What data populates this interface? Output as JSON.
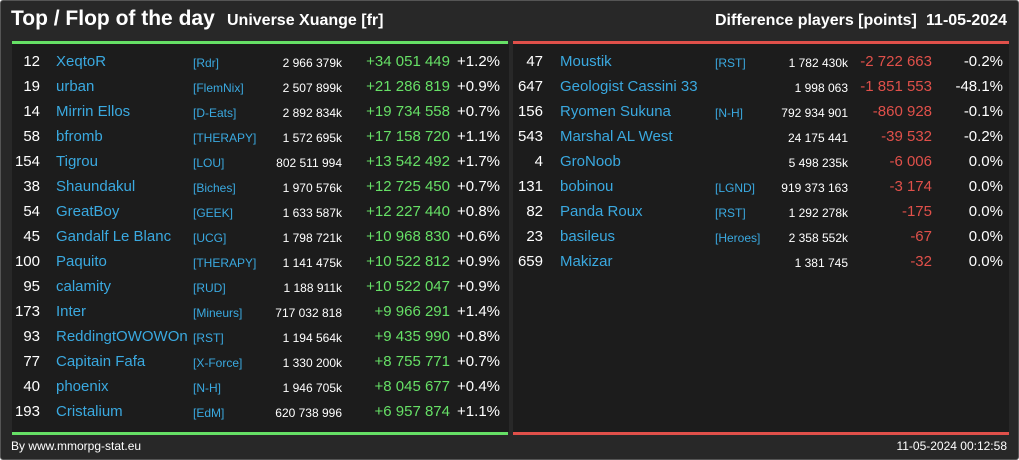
{
  "header": {
    "title": "Top / Flop of the day",
    "universe": "Universe Xuange [fr]",
    "difference_label": "Difference players [points]",
    "date": "11-05-2024"
  },
  "colors": {
    "background": "#282828",
    "panel": "#1c1c1c",
    "link": "#3aa9e0",
    "gain": "#66e066",
    "loss": "#e0504a"
  },
  "top": [
    {
      "rank": "12",
      "name": "XeqtoR",
      "alliance": "[Rdr]",
      "points": "2 966 379k",
      "diff": "+34 051 449",
      "pct": "+1.2%"
    },
    {
      "rank": "19",
      "name": "urban",
      "alliance": "[FlemNix]",
      "points": "2 507 899k",
      "diff": "+21 286 819",
      "pct": "+0.9%"
    },
    {
      "rank": "14",
      "name": "Mirrin Ellos",
      "alliance": "[D-Eats]",
      "points": "2 892 834k",
      "diff": "+19 734 558",
      "pct": "+0.7%"
    },
    {
      "rank": "58",
      "name": "bfromb",
      "alliance": "[THERAPY]",
      "points": "1 572 695k",
      "diff": "+17 158 720",
      "pct": "+1.1%"
    },
    {
      "rank": "154",
      "name": "Tigrou",
      "alliance": "[LOU]",
      "points": "802 511 994",
      "diff": "+13 542 492",
      "pct": "+1.7%"
    },
    {
      "rank": "38",
      "name": "Shaundakul",
      "alliance": "[Biches]",
      "points": "1 970 576k",
      "diff": "+12 725 450",
      "pct": "+0.7%"
    },
    {
      "rank": "54",
      "name": "GreatBoy",
      "alliance": "[GEEK]",
      "points": "1 633 587k",
      "diff": "+12 227 440",
      "pct": "+0.8%"
    },
    {
      "rank": "45",
      "name": "Gandalf Le Blanc",
      "alliance": "[UCG]",
      "points": "1 798 721k",
      "diff": "+10 968 830",
      "pct": "+0.6%"
    },
    {
      "rank": "100",
      "name": "Paquito",
      "alliance": "[THERAPY]",
      "points": "1 141 475k",
      "diff": "+10 522 812",
      "pct": "+0.9%"
    },
    {
      "rank": "95",
      "name": "calamity",
      "alliance": "[RUD]",
      "points": "1 188 911k",
      "diff": "+10 522 047",
      "pct": "+0.9%"
    },
    {
      "rank": "173",
      "name": "Inter",
      "alliance": "[Mineurs]",
      "points": "717 032 818",
      "diff": "+9 966 291",
      "pct": "+1.4%"
    },
    {
      "rank": "93",
      "name": "ReddingtOWOWOn",
      "alliance": "[RST]",
      "points": "1 194 564k",
      "diff": "+9 435 990",
      "pct": "+0.8%"
    },
    {
      "rank": "77",
      "name": "Capitain Fafa",
      "alliance": "[X-Force]",
      "points": "1 330 200k",
      "diff": "+8 755 771",
      "pct": "+0.7%"
    },
    {
      "rank": "40",
      "name": "phoenix",
      "alliance": "[N-H]",
      "points": "1 946 705k",
      "diff": "+8 045 677",
      "pct": "+0.4%"
    },
    {
      "rank": "193",
      "name": "Cristalium",
      "alliance": "[EdM]",
      "points": "620 738 996",
      "diff": "+6 957 874",
      "pct": "+1.1%"
    }
  ],
  "flop": [
    {
      "rank": "47",
      "name": "Moustik",
      "alliance": "[RST]",
      "points": "1 782 430k",
      "diff": "-2 722 663",
      "pct": "-0.2%"
    },
    {
      "rank": "647",
      "name": "Geologist Cassini 33",
      "alliance": "",
      "points": "1 998 063",
      "diff": "-1 851 553",
      "pct": "-48.1%"
    },
    {
      "rank": "156",
      "name": "Ryomen Sukuna",
      "alliance": "[N-H]",
      "points": "792 934 901",
      "diff": "-860 928",
      "pct": "-0.1%"
    },
    {
      "rank": "543",
      "name": "Marshal AL West",
      "alliance": "",
      "points": "24 175 441",
      "diff": "-39 532",
      "pct": "-0.2%"
    },
    {
      "rank": "4",
      "name": "GroNoob",
      "alliance": "",
      "points": "5 498 235k",
      "diff": "-6 006",
      "pct": "0.0%"
    },
    {
      "rank": "131",
      "name": "bobinou",
      "alliance": "[LGND]",
      "points": "919 373 163",
      "diff": "-3 174",
      "pct": "0.0%"
    },
    {
      "rank": "82",
      "name": "Panda Roux",
      "alliance": "[RST]",
      "points": "1 292 278k",
      "diff": "-175",
      "pct": "0.0%"
    },
    {
      "rank": "23",
      "name": "basileus",
      "alliance": "[Heroes]",
      "points": "2 358 552k",
      "diff": "-67",
      "pct": "0.0%"
    },
    {
      "rank": "659",
      "name": "Makizar",
      "alliance": "",
      "points": "1 381 745",
      "diff": "-32",
      "pct": "0.0%"
    }
  ],
  "footer": {
    "credit": "By www.mmorpg-stat.eu",
    "timestamp": "11-05-2024 00:12:58"
  }
}
